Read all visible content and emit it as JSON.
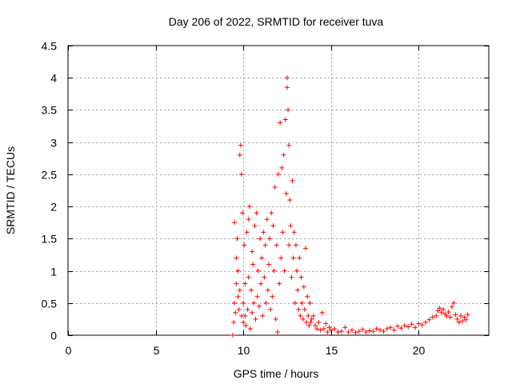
{
  "chart_data": {
    "type": "scatter",
    "title": "Day 206 of 2022, SRMTID for receiver tuva",
    "xlabel": "GPS time / hours",
    "ylabel": "SRMTID / TECUs",
    "xlim": [
      0,
      24
    ],
    "ylim": [
      0,
      4.5
    ],
    "xticks": [
      0,
      5,
      10,
      15,
      20
    ],
    "yticks": [
      0,
      0.5,
      1,
      1.5,
      2,
      2.5,
      3,
      3.5,
      4,
      4.5
    ],
    "xtick_labels": [
      "0",
      "5",
      "10",
      "15",
      "20"
    ],
    "ytick_labels": [
      "0",
      "0.5",
      "1",
      "1.5",
      "2",
      "2.5",
      "3",
      "3.5",
      "4",
      "4.5"
    ],
    "grid": true,
    "marker": "+",
    "color": "#ff0000",
    "series": [
      {
        "name": "SRMTID",
        "x": [
          9.4,
          9.45,
          9.5,
          9.5,
          9.55,
          9.6,
          9.6,
          9.65,
          9.7,
          9.7,
          9.75,
          9.8,
          9.8,
          9.85,
          9.9,
          9.9,
          9.95,
          10.0,
          10.0,
          10.05,
          10.1,
          10.1,
          10.15,
          10.2,
          10.25,
          10.3,
          10.3,
          10.35,
          10.4,
          10.45,
          10.5,
          10.5,
          10.55,
          10.6,
          10.65,
          10.7,
          10.75,
          10.8,
          10.85,
          10.9,
          10.95,
          11.0,
          11.05,
          11.1,
          11.15,
          11.2,
          11.25,
          11.3,
          11.35,
          11.4,
          11.45,
          11.5,
          11.55,
          11.6,
          11.65,
          11.7,
          11.75,
          11.8,
          11.85,
          11.9,
          11.95,
          12.0,
          12.05,
          12.1,
          12.15,
          12.2,
          12.25,
          12.3,
          12.35,
          12.4,
          12.45,
          12.5,
          12.5,
          12.55,
          12.6,
          12.6,
          12.65,
          12.7,
          12.75,
          12.8,
          12.85,
          12.9,
          12.95,
          13.0,
          13.05,
          13.1,
          13.15,
          13.2,
          13.25,
          13.3,
          13.35,
          13.4,
          13.45,
          13.5,
          13.55,
          13.6,
          13.65,
          13.7,
          13.75,
          13.8,
          13.85,
          13.9,
          14.0,
          14.1,
          14.2,
          14.3,
          14.4,
          14.5,
          14.6,
          14.7,
          14.8,
          14.9,
          15.0,
          15.2,
          15.4,
          15.6,
          15.8,
          16.0,
          16.2,
          16.4,
          16.6,
          16.8,
          17.0,
          17.2,
          17.4,
          17.6,
          17.8,
          18.0,
          18.2,
          18.4,
          18.6,
          18.8,
          19.0,
          19.2,
          19.4,
          19.6,
          19.8,
          20.0,
          20.2,
          20.4,
          20.6,
          20.8,
          21.0,
          21.1,
          21.2,
          21.3,
          21.4,
          21.5,
          21.6,
          21.7,
          21.8,
          21.9,
          22.0,
          22.1,
          22.2,
          22.3,
          22.4,
          22.5,
          22.6,
          22.7,
          22.8
        ],
        "y": [
          0.0,
          0.2,
          0.5,
          1.75,
          0.35,
          1.2,
          0.8,
          1.5,
          0.6,
          1.0,
          0.4,
          2.8,
          0.7,
          2.95,
          2.5,
          0.3,
          1.9,
          0.5,
          0.2,
          1.4,
          0.3,
          0.8,
          0.15,
          1.6,
          0.4,
          1.8,
          0.9,
          2.0,
          0.1,
          0.7,
          1.3,
          0.35,
          1.1,
          0.5,
          1.7,
          0.25,
          1.9,
          0.6,
          1.0,
          0.45,
          1.5,
          0.8,
          1.2,
          0.3,
          1.6,
          0.9,
          1.4,
          0.5,
          1.8,
          0.7,
          1.1,
          1.5,
          0.4,
          1.9,
          0.6,
          1.7,
          1.0,
          2.3,
          0.25,
          1.4,
          0.05,
          2.5,
          0.8,
          3.3,
          1.2,
          2.6,
          1.6,
          2.8,
          1.0,
          3.35,
          2.2,
          4.0,
          3.85,
          3.5,
          2.95,
          1.4,
          2.1,
          1.7,
          0.9,
          2.4,
          1.2,
          1.6,
          0.5,
          1.4,
          1.0,
          0.7,
          0.4,
          1.2,
          0.3,
          0.9,
          0.5,
          0.25,
          0.75,
          0.4,
          1.35,
          0.2,
          0.6,
          0.3,
          0.15,
          0.5,
          0.2,
          0.25,
          0.3,
          0.15,
          0.1,
          0.2,
          0.08,
          0.35,
          0.1,
          0.18,
          0.05,
          0.12,
          0.08,
          0.1,
          0.05,
          0.06,
          0.12,
          0.05,
          0.08,
          0.04,
          0.06,
          0.09,
          0.05,
          0.07,
          0.06,
          0.1,
          0.08,
          0.06,
          0.1,
          0.12,
          0.08,
          0.14,
          0.11,
          0.15,
          0.13,
          0.17,
          0.12,
          0.18,
          0.16,
          0.2,
          0.24,
          0.28,
          0.3,
          0.38,
          0.42,
          0.35,
          0.4,
          0.33,
          0.3,
          0.36,
          0.28,
          0.44,
          0.5,
          0.32,
          0.25,
          0.2,
          0.3,
          0.22,
          0.28,
          0.24,
          0.32
        ]
      }
    ]
  }
}
